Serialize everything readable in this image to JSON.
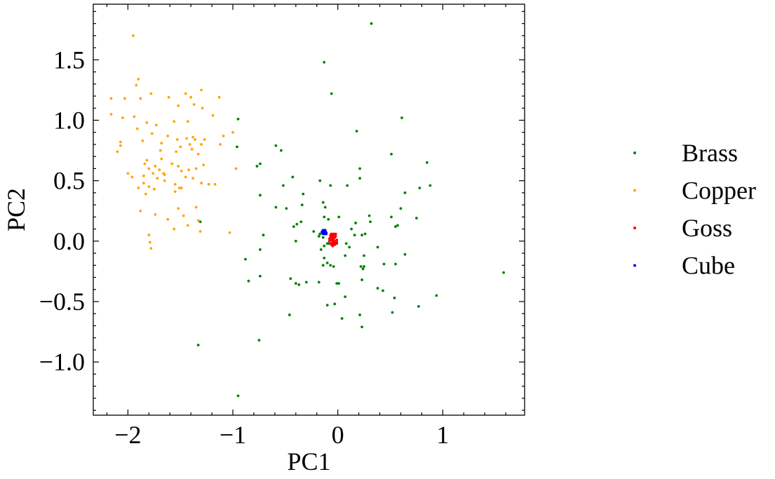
{
  "chart_data": {
    "type": "scatter",
    "title": "",
    "xlabel": "PC1",
    "ylabel": "PC2",
    "xlim": [
      -2.33,
      1.78
    ],
    "ylim": [
      -1.44,
      1.96
    ],
    "xticks": [
      -2,
      -1,
      0,
      1
    ],
    "xtick_labels": [
      "−2",
      "−1",
      "0",
      "1"
    ],
    "yticks": [
      -1.0,
      -0.5,
      0.0,
      0.5,
      1.0,
      1.5
    ],
    "ytick_labels": [
      "−1.0",
      "−0.5",
      "0.0",
      "0.5",
      "1.0",
      "1.5"
    ],
    "x_minor_step": 0.2,
    "y_minor_step": 0.1,
    "grid": false,
    "legend_position": "right-outside",
    "series": [
      {
        "name": "Brass",
        "color": "#008000",
        "points": [
          [
            0.32,
            1.8
          ],
          [
            -0.13,
            1.48
          ],
          [
            -0.06,
            1.22
          ],
          [
            0.18,
            0.91
          ],
          [
            0.61,
            1.02
          ],
          [
            0.51,
            0.72
          ],
          [
            -0.95,
            1.01
          ],
          [
            -0.96,
            0.78
          ],
          [
            -0.77,
            0.62
          ],
          [
            -0.74,
            0.64
          ],
          [
            0.85,
            0.65
          ],
          [
            -0.59,
            0.79
          ],
          [
            -0.54,
            0.75
          ],
          [
            0.21,
            0.6
          ],
          [
            -0.43,
            0.53
          ],
          [
            -0.17,
            0.5
          ],
          [
            -0.52,
            0.46
          ],
          [
            -0.07,
            0.46
          ],
          [
            0.09,
            0.46
          ],
          [
            0.21,
            0.52
          ],
          [
            0.88,
            0.46
          ],
          [
            0.78,
            0.44
          ],
          [
            0.64,
            0.4
          ],
          [
            -0.33,
            0.39
          ],
          [
            -0.74,
            0.38
          ],
          [
            -0.59,
            0.28
          ],
          [
            -0.14,
            0.32
          ],
          [
            -0.34,
            0.3
          ],
          [
            0.6,
            0.27
          ],
          [
            -0.12,
            0.28
          ],
          [
            -0.49,
            0.27
          ],
          [
            0.01,
            0.2
          ],
          [
            0.3,
            0.21
          ],
          [
            0.51,
            0.2
          ],
          [
            -0.13,
            0.2
          ],
          [
            0.75,
            0.19
          ],
          [
            -0.09,
            0.18
          ],
          [
            0.31,
            0.16
          ],
          [
            -0.35,
            0.16
          ],
          [
            0.17,
            0.15
          ],
          [
            -1.31,
            0.16
          ],
          [
            0.55,
            0.12
          ],
          [
            -0.39,
            0.14
          ],
          [
            -0.42,
            0.12
          ],
          [
            0.13,
            0.1
          ],
          [
            0.26,
            0.06
          ],
          [
            -0.23,
            0.08
          ],
          [
            -0.71,
            0.05
          ],
          [
            -0.18,
            0.04
          ],
          [
            -0.14,
            0.03
          ],
          [
            0.57,
            0.13
          ],
          [
            -0.17,
            0.06
          ],
          [
            0.16,
            0.05
          ],
          [
            -0.4,
            0.0
          ],
          [
            0.23,
            0.05
          ],
          [
            -0.09,
            -0.02
          ],
          [
            -0.1,
            -0.02
          ],
          [
            0.08,
            -0.02
          ],
          [
            0.11,
            -0.05
          ],
          [
            -0.01,
            -0.02
          ],
          [
            0.38,
            -0.05
          ],
          [
            0.64,
            -0.11
          ],
          [
            -0.74,
            -0.07
          ],
          [
            -0.13,
            -0.04
          ],
          [
            -0.16,
            -0.07
          ],
          [
            -0.88,
            -0.15
          ],
          [
            0.25,
            -0.12
          ],
          [
            0.25,
            -0.21
          ],
          [
            0.07,
            -0.12
          ],
          [
            -0.13,
            -0.14
          ],
          [
            -0.07,
            -0.2
          ],
          [
            -0.04,
            -0.21
          ],
          [
            0.24,
            -0.23
          ],
          [
            0.22,
            -0.21
          ],
          [
            -0.14,
            -0.2
          ],
          [
            0.44,
            -0.19
          ],
          [
            -0.1,
            -0.18
          ],
          [
            0.55,
            -0.19
          ],
          [
            -0.45,
            -0.31
          ],
          [
            -0.74,
            -0.29
          ],
          [
            -0.85,
            -0.33
          ],
          [
            -0.4,
            -0.35
          ],
          [
            -0.37,
            -0.36
          ],
          [
            -0.18,
            -0.34
          ],
          [
            -0.3,
            -0.34
          ],
          [
            0.23,
            -0.32
          ],
          [
            -0.01,
            -0.35
          ],
          [
            0.43,
            -0.41
          ],
          [
            0.54,
            -0.47
          ],
          [
            0.77,
            -0.54
          ],
          [
            0.94,
            -0.45
          ],
          [
            0.07,
            -0.46
          ],
          [
            0.38,
            -0.39
          ],
          [
            -0.03,
            -0.52
          ],
          [
            0.21,
            -0.61
          ],
          [
            0.52,
            -0.59
          ],
          [
            -0.46,
            -0.61
          ],
          [
            0.04,
            -0.64
          ],
          [
            0.23,
            -0.71
          ],
          [
            1.58,
            -0.26
          ],
          [
            -0.1,
            -0.53
          ],
          [
            -0.75,
            -0.82
          ],
          [
            -1.33,
            -0.86
          ],
          [
            -0.95,
            -1.28
          ],
          [
            0.01,
            -0.35
          ]
        ]
      },
      {
        "name": "Copper",
        "color": "#ffa500",
        "points": [
          [
            -1.95,
            1.7
          ],
          [
            -1.9,
            1.34
          ],
          [
            -1.92,
            1.29
          ],
          [
            -1.78,
            1.22
          ],
          [
            -1.45,
            1.22
          ],
          [
            -2.03,
            1.18
          ],
          [
            -2.16,
            1.18
          ],
          [
            -1.4,
            1.19
          ],
          [
            -1.13,
            1.19
          ],
          [
            -1.3,
            1.25
          ],
          [
            -1.88,
            1.18
          ],
          [
            -2.16,
            1.05
          ],
          [
            -1.61,
            1.19
          ],
          [
            -1.52,
            1.12
          ],
          [
            -1.37,
            1.13
          ],
          [
            -1.19,
            1.04
          ],
          [
            -1.29,
            1.1
          ],
          [
            -2.05,
            1.02
          ],
          [
            -1.94,
            1.03
          ],
          [
            -1.56,
            0.99
          ],
          [
            -1.43,
            0.99
          ],
          [
            -1.0,
            0.9
          ],
          [
            -1.82,
            0.98
          ],
          [
            -1.73,
            0.96
          ],
          [
            -2.1,
            0.74
          ],
          [
            -1.91,
            0.93
          ],
          [
            -1.77,
            0.89
          ],
          [
            -1.62,
            0.87
          ],
          [
            -1.38,
            0.86
          ],
          [
            -1.27,
            0.84
          ],
          [
            -1.09,
            0.87
          ],
          [
            -1.3,
            0.8
          ],
          [
            -2.07,
            0.82
          ],
          [
            -2.07,
            0.79
          ],
          [
            -1.86,
            0.83
          ],
          [
            -1.68,
            0.81
          ],
          [
            -1.53,
            0.84
          ],
          [
            -1.44,
            0.85
          ],
          [
            -1.41,
            0.8
          ],
          [
            -1.36,
            0.84
          ],
          [
            -1.12,
            0.8
          ],
          [
            -1.69,
            0.75
          ],
          [
            -1.54,
            0.74
          ],
          [
            -1.5,
            0.78
          ],
          [
            -1.39,
            0.76
          ],
          [
            -1.33,
            0.72
          ],
          [
            -1.82,
            0.67
          ],
          [
            -1.84,
            0.64
          ],
          [
            -1.68,
            0.68
          ],
          [
            -1.8,
            0.6
          ],
          [
            -1.74,
            0.62
          ],
          [
            -1.7,
            0.59
          ],
          [
            -1.66,
            0.56
          ],
          [
            -1.58,
            0.64
          ],
          [
            -1.52,
            0.62
          ],
          [
            -1.49,
            0.58
          ],
          [
            -1.42,
            0.59
          ],
          [
            -1.35,
            0.6
          ],
          [
            -1.28,
            0.63
          ],
          [
            -0.97,
            0.6
          ],
          [
            -2.0,
            0.56
          ],
          [
            -1.96,
            0.53
          ],
          [
            -1.85,
            0.54
          ],
          [
            -1.76,
            0.56
          ],
          [
            -1.72,
            0.52
          ],
          [
            -1.65,
            0.5
          ],
          [
            -1.55,
            0.47
          ],
          [
            -1.45,
            0.53
          ],
          [
            -1.38,
            0.52
          ],
          [
            -1.3,
            0.48
          ],
          [
            -1.23,
            0.47
          ],
          [
            -1.17,
            0.47
          ],
          [
            -1.85,
            0.48
          ],
          [
            -1.8,
            0.45
          ],
          [
            -1.9,
            0.44
          ],
          [
            -1.55,
            0.41
          ],
          [
            -1.49,
            0.44
          ],
          [
            -1.83,
            0.39
          ],
          [
            -1.75,
            0.43
          ],
          [
            -1.51,
            0.44
          ],
          [
            -1.88,
            0.25
          ],
          [
            -1.52,
            0.27
          ],
          [
            -1.35,
            0.28
          ],
          [
            -1.74,
            0.22
          ],
          [
            -1.47,
            0.21
          ],
          [
            -1.33,
            0.17
          ],
          [
            -1.43,
            0.13
          ],
          [
            -1.56,
            0.1
          ],
          [
            -1.31,
            0.08
          ],
          [
            -1.8,
            0.05
          ],
          [
            -1.79,
            -0.01
          ],
          [
            -1.78,
            -0.06
          ],
          [
            -1.03,
            0.07
          ],
          [
            -1.62,
            0.18
          ],
          [
            -1.65,
            0.55
          ]
        ]
      },
      {
        "name": "Goss",
        "color": "#ff0000",
        "points": [
          [
            -0.05,
            0.04
          ],
          [
            -0.04,
            0.02
          ],
          [
            -0.06,
            0.01
          ],
          [
            -0.03,
            0.03
          ],
          [
            -0.05,
            -0.01
          ],
          [
            -0.02,
            0.0
          ],
          [
            -0.07,
            0.03
          ],
          [
            -0.04,
            -0.02
          ],
          [
            -0.06,
            -0.03
          ],
          [
            -0.03,
            -0.03
          ],
          [
            -0.05,
            0.05
          ],
          [
            -0.02,
            0.04
          ],
          [
            -0.08,
            0.0
          ],
          [
            -0.01,
            0.01
          ],
          [
            -0.06,
            0.06
          ],
          [
            -0.04,
            0.06
          ],
          [
            -0.03,
            -0.01
          ],
          [
            -0.05,
            0.02
          ],
          [
            -0.07,
            -0.02
          ],
          [
            -0.02,
            -0.02
          ],
          [
            -0.04,
            0.0
          ],
          [
            -0.06,
            0.04
          ],
          [
            -0.03,
            0.05
          ],
          [
            -0.05,
            -0.04
          ],
          [
            -0.08,
            0.02
          ],
          [
            -0.01,
            -0.01
          ],
          [
            -0.04,
            0.03
          ],
          [
            -0.07,
            0.05
          ],
          [
            -0.02,
            0.06
          ],
          [
            -0.05,
            0.0
          ]
        ]
      },
      {
        "name": "Cube",
        "color": "#0000ff",
        "points": [
          [
            -0.14,
            0.08
          ],
          [
            -0.13,
            0.07
          ],
          [
            -0.12,
            0.08
          ],
          [
            -0.15,
            0.07
          ],
          [
            -0.13,
            0.06
          ],
          [
            -0.12,
            0.06
          ],
          [
            -0.14,
            0.09
          ],
          [
            -0.11,
            0.07
          ],
          [
            -0.15,
            0.08
          ],
          [
            -0.13,
            0.09
          ],
          [
            -0.12,
            0.09
          ],
          [
            -0.14,
            0.06
          ],
          [
            -0.11,
            0.06
          ],
          [
            -0.14,
            0.07
          ],
          [
            -0.12,
            0.07
          ]
        ]
      }
    ]
  }
}
